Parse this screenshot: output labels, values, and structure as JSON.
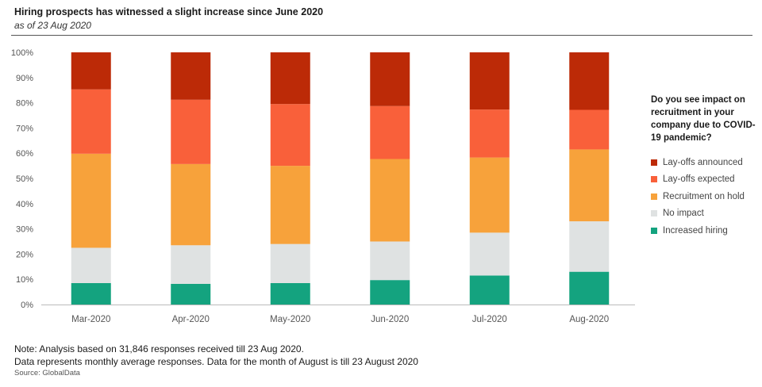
{
  "header": {
    "title": "Hiring prospects has witnessed a slight increase since June 2020",
    "subtitle": "as of 23 Aug 2020"
  },
  "legend": {
    "title": "Do you see impact on recruitment in your company due to COVID-19 pandemic?"
  },
  "notes": {
    "line1": "Note: Analysis based on 31,846 responses received till 23 Aug 2020.",
    "line2": "Data represents monthly average responses. Data for the month of August is till 23 August 2020",
    "source": "Source: GlobalData"
  },
  "chart_data": {
    "type": "bar",
    "stacked": true,
    "categories": [
      "Mar-2020",
      "Apr-2020",
      "May-2020",
      "Jun-2020",
      "Jul-2020",
      "Aug-2020"
    ],
    "ylim": [
      0,
      100
    ],
    "yticks": [
      "0%",
      "10%",
      "20%",
      "30%",
      "40%",
      "50%",
      "60%",
      "70%",
      "80%",
      "90%",
      "100%"
    ],
    "grid": false,
    "legend_position": "right",
    "series": [
      {
        "name": "Increased hiring",
        "color": "#14a37f",
        "values": [
          8.5,
          8.2,
          8.5,
          9.7,
          11.5,
          13.0
        ]
      },
      {
        "name": "No impact",
        "color": "#dfe2e2",
        "values": [
          14.0,
          15.3,
          15.5,
          15.3,
          17.0,
          20.0
        ]
      },
      {
        "name": "Recruitment on hold",
        "color": "#f7a23b",
        "values": [
          37.3,
          32.2,
          31.0,
          32.7,
          29.8,
          28.5
        ]
      },
      {
        "name": "Lay-offs expected",
        "color": "#f9603a",
        "values": [
          25.5,
          25.5,
          24.5,
          21.0,
          19.0,
          15.7
        ]
      },
      {
        "name": "Lay-offs announced",
        "color": "#bc2a07",
        "values": [
          14.7,
          18.8,
          20.5,
          21.3,
          22.7,
          22.8
        ]
      }
    ]
  }
}
